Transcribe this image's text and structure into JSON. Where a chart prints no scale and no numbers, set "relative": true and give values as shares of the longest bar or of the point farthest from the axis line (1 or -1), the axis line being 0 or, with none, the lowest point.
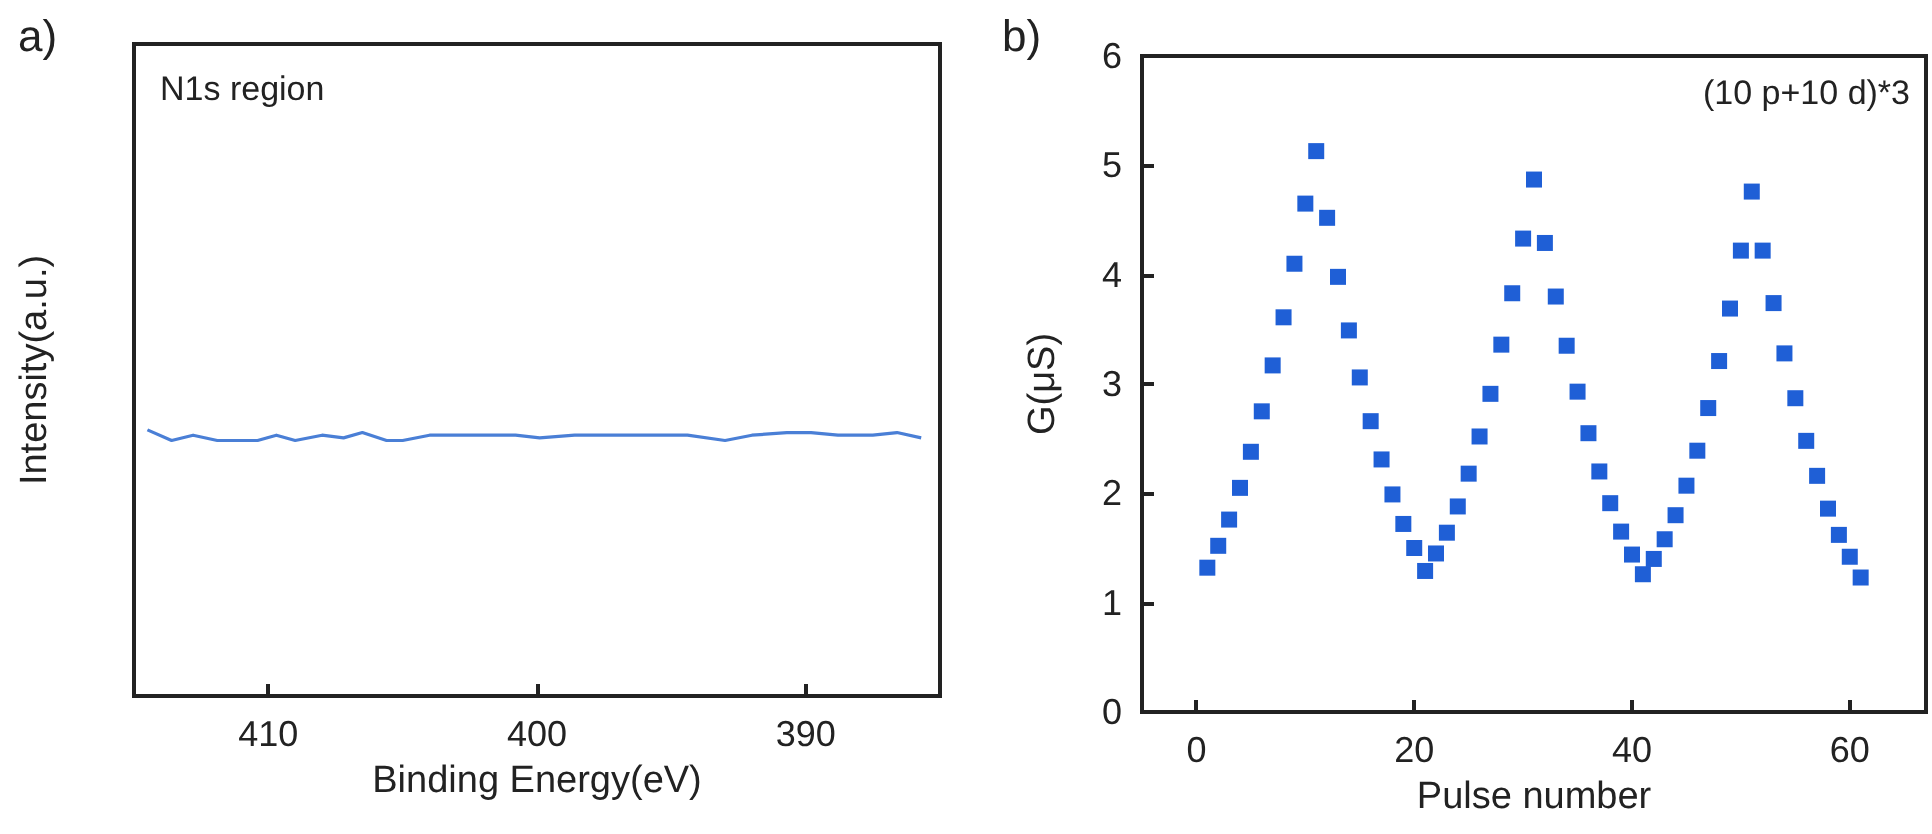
{
  "chart_data": [
    {
      "type": "line",
      "title": "a)",
      "xlabel": "Binding Energy(eV)",
      "ylabel": "Intensity(a.u.)",
      "annotations": [
        "N1s region"
      ],
      "relative": true,
      "tick_labels": "x",
      "xlim": [
        415,
        385
      ],
      "xticks": [
        410,
        400,
        390
      ],
      "grid": false,
      "marker": "none",
      "line_style": "solid",
      "series": [
        {
          "color": "#4a7fd6",
          "x": [
            414.5,
            413.6,
            412.8,
            411.9,
            411.2,
            410.4,
            409.7,
            409.0,
            408.0,
            407.2,
            406.5,
            405.6,
            405.0,
            404.0,
            402.6,
            400.8,
            399.9,
            398.6,
            397.1,
            395.4,
            394.4,
            393.0,
            392.0,
            390.7,
            389.8,
            388.8,
            387.5,
            386.6,
            385.7
          ],
          "values": [
            1.0,
            0.96,
            0.98,
            0.96,
            0.96,
            0.96,
            0.98,
            0.96,
            0.98,
            0.97,
            0.99,
            0.96,
            0.96,
            0.98,
            0.98,
            0.98,
            0.97,
            0.98,
            0.98,
            0.98,
            0.98,
            0.96,
            0.98,
            0.99,
            0.99,
            0.98,
            0.98,
            0.99,
            0.97
          ]
        }
      ]
    },
    {
      "type": "scatter",
      "title": "b)",
      "xlabel": "Pulse number",
      "ylabel": "G(μS)",
      "annotations": [
        "(10 p+10 d)*3"
      ],
      "xlim": [
        -5,
        67
      ],
      "xticks": [
        0,
        20,
        40,
        60
      ],
      "ylim": [
        0,
        6
      ],
      "yticks": [
        0,
        1,
        2,
        3,
        4,
        5,
        6
      ],
      "grid": false,
      "marker": "square",
      "series": [
        {
          "color": "#1f5fd6",
          "x": [
            1,
            2,
            3,
            4,
            5,
            6,
            7,
            8,
            9,
            10,
            11,
            12,
            13,
            14,
            15,
            16,
            17,
            18,
            19,
            20,
            21,
            22,
            23,
            24,
            25,
            26,
            27,
            28,
            29,
            30,
            31,
            32,
            33,
            34,
            35,
            36,
            37,
            38,
            39,
            40,
            41,
            42,
            43,
            44,
            45,
            46,
            47,
            48,
            49,
            50,
            51,
            52,
            53,
            54,
            55,
            56,
            57,
            58,
            59,
            60,
            61
          ],
          "values": [
            1.32,
            1.52,
            1.76,
            2.05,
            2.38,
            2.75,
            3.17,
            3.61,
            4.1,
            4.65,
            5.13,
            4.52,
            3.98,
            3.49,
            3.06,
            2.66,
            2.31,
            1.99,
            1.72,
            1.5,
            1.29,
            1.45,
            1.64,
            1.88,
            2.18,
            2.52,
            2.91,
            3.36,
            3.83,
            4.33,
            4.87,
            4.29,
            3.8,
            3.35,
            2.93,
            2.55,
            2.2,
            1.91,
            1.65,
            1.44,
            1.26,
            1.4,
            1.58,
            1.8,
            2.07,
            2.39,
            2.78,
            3.21,
            3.69,
            4.22,
            4.76,
            4.22,
            3.74,
            3.28,
            2.87,
            2.48,
            2.16,
            1.86,
            1.62,
            1.42,
            1.23
          ]
        }
      ]
    }
  ]
}
